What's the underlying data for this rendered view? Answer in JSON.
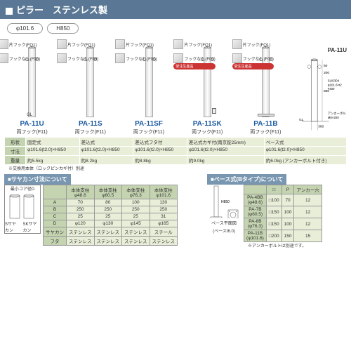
{
  "title": "ピラー　ステンレス製",
  "dim_pills": [
    "φ101.6",
    "H850"
  ],
  "products": [
    {
      "code": "PA-11U",
      "hook": "両フック(F11)",
      "type": "固定式",
      "dim": "φ101.6(t2.0)×H850",
      "weight": "約5.5kg",
      "has_base": false,
      "has_lock": false,
      "detail1": "片フック(FQ1)",
      "detail2": "フックなし(F00)",
      "badge": false
    },
    {
      "code": "PA-11S",
      "hook": "両フック(F11)",
      "type": "差込式",
      "dim": "φ101.6(t2.0)×H850",
      "weight": "約8.2kg",
      "has_base": false,
      "has_lock": false,
      "detail1": "片フック(FQ1)",
      "detail2": "フックなし(F00)",
      "badge": false
    },
    {
      "code": "PA-11SF",
      "hook": "両フック(F11)",
      "type": "差込式フタ付",
      "dim": "φ101.6(t2.0)×H850",
      "weight": "約8.8kg",
      "has_base": false,
      "has_lock": false,
      "detail1": "片フック(FQ1)",
      "detail2": "フックなし(F00)",
      "badge": false
    },
    {
      "code": "PA-11SK",
      "hook": "両フック(F11)",
      "type": "差込式カギ付(南京錠25mm)",
      "dim": "φ101.6(t2.0)×H850",
      "weight": "約9.0kg",
      "has_base": false,
      "has_lock": true,
      "detail1": "片フック(FQ1)",
      "detail2": "フックなし(F00)",
      "badge": true
    },
    {
      "code": "PA-11B",
      "hook": "両フック(F11)",
      "type": "ベース式",
      "dim": "φ101.6(t2.0)×H850",
      "weight": "約6.0kg\n(アンカーボルト付き)",
      "has_base": true,
      "has_lock": false,
      "detail1": "片フック(FQ1)",
      "detail2": "フックなし(F00)",
      "badge": true
    }
  ],
  "diagram_label": "PA-11U",
  "diagram_notes": [
    "SUS304",
    "φ101.6×t2",
    "#400",
    "アンカーボルト",
    "M8×200"
  ],
  "spec_rows": [
    {
      "label": "形状",
      "cells": [
        "固定式",
        "差込式",
        "差込式フタ付",
        "差込式カギ付(南京錠25mm)",
        "ベース式"
      ]
    },
    {
      "label": "寸法",
      "cells": [
        "φ101.6(t2.0)×H850",
        "φ101.6(t2.0)×H850",
        "φ101.6(t2.0)×H850",
        "φ101.6(t2.0)×H850",
        "φ101.6(t2.0)×H850"
      ]
    },
    {
      "label": "重量",
      "cells": [
        "約5.5kg",
        "約8.2kg",
        "約8.8kg",
        "約9.0kg",
        "約6.0kg (アンカーボルト付き)"
      ]
    }
  ],
  "spec_note": "※交換用本体（ロックピンカギ付）別途",
  "sayakan": {
    "title": "■サヤカン寸法について",
    "diag_label": "最小コア径D",
    "foot_labels": [
      "Sサヤカン",
      "SKサヤカン"
    ],
    "headers": [
      "",
      "本体支柱 φ48.6",
      "本体支柱 φ60.5",
      "本体支柱 φ76.3",
      "本体支柱 φ101.6"
    ],
    "rows": [
      {
        "label": "A",
        "cells": [
          "70",
          "80",
          "100",
          "130"
        ]
      },
      {
        "label": "B",
        "cells": [
          "250",
          "250",
          "250",
          "250"
        ]
      },
      {
        "label": "C",
        "cells": [
          "25",
          "25",
          "25",
          "31"
        ]
      },
      {
        "label": "D",
        "cells": [
          "φ120",
          "φ130",
          "φ145",
          "φ165"
        ]
      },
      {
        "label": "サヤカン",
        "cells": [
          "ステンレス",
          "ステンレス",
          "ステンレス",
          "スチール"
        ]
      },
      {
        "label": "フタ",
        "cells": [
          "ステンレス",
          "ステンレス",
          "ステンレス",
          "ステンレス"
        ]
      }
    ]
  },
  "base": {
    "title": "■ベース式(Bタイプ)について",
    "h_label": "H850",
    "plan_label": "ベース平面図",
    "plate_label": "(ベースt6.0)",
    "headers": [
      "",
      "□",
      "P",
      "アンカー穴"
    ],
    "rows": [
      {
        "label": "PA-4BB (φ48.6)",
        "cells": [
          "□100",
          "70",
          "12"
        ]
      },
      {
        "label": "PA-7B (φ60.5)",
        "cells": [
          "□150",
          "100",
          "12"
        ]
      },
      {
        "label": "PA-8B (φ76.3)",
        "cells": [
          "□150",
          "100",
          "12"
        ]
      },
      {
        "label": "PA-11B (φ101.6)",
        "cells": [
          "□200",
          "150",
          "15"
        ]
      }
    ],
    "note": "※アンカーボルトは別途です。"
  },
  "badge_text": "受注生産品"
}
